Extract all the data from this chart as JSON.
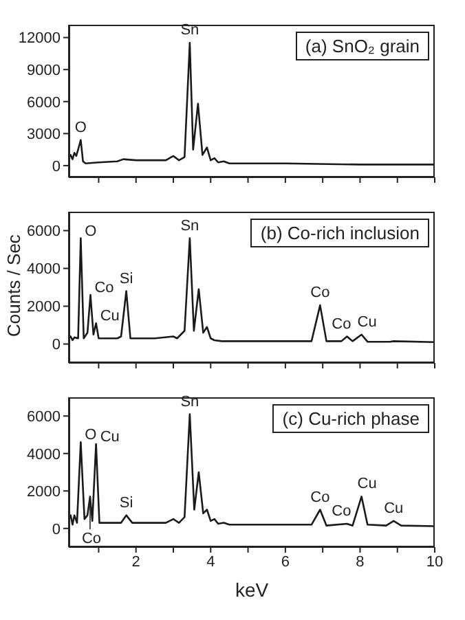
{
  "chart_data": [
    {
      "type": "line",
      "title": "(a) SnO₂ grain",
      "color": "#1a1a1a",
      "tick_labels": "y",
      "x": [
        0.2,
        0.25,
        0.3,
        0.35,
        0.4,
        0.45,
        0.52,
        0.58,
        0.65,
        1.0,
        1.5,
        1.66,
        2.0,
        2.8,
        3.0,
        3.15,
        3.3,
        3.44,
        3.53,
        3.66,
        3.78,
        3.9,
        4.0,
        4.1,
        4.2,
        4.35,
        4.5,
        6,
        8,
        10
      ],
      "values": [
        700,
        1000,
        600,
        1200,
        900,
        1500,
        2400,
        400,
        200,
        300,
        400,
        600,
        500,
        500,
        900,
        500,
        800,
        11500,
        1500,
        5800,
        1000,
        1700,
        500,
        700,
        300,
        400,
        200,
        200,
        100,
        100
      ],
      "xlim": [
        0.2,
        10
      ],
      "xticks": [
        {
          "value": 1,
          "label": null
        },
        2,
        {
          "value": 3,
          "label": null
        },
        4,
        {
          "value": 5,
          "label": null
        },
        6,
        {
          "value": 7,
          "label": null
        },
        8,
        {
          "value": 9,
          "label": null
        },
        10
      ],
      "ylim": [
        -1100,
        13200
      ],
      "yticks": [
        0,
        3000,
        6000,
        9000,
        12000
      ],
      "annotations": [
        {
          "text": "O",
          "x": 0.52,
          "y": 2400
        },
        {
          "text": "Sn",
          "x": 3.44,
          "y": 11500
        }
      ]
    },
    {
      "type": "line",
      "title": "(b) Co-rich inclusion",
      "ylabel": "Counts / Sec",
      "color": "#1a1a1a",
      "tick_labels": "y",
      "x": [
        0.2,
        0.25,
        0.3,
        0.35,
        0.45,
        0.52,
        0.6,
        0.7,
        0.78,
        0.86,
        0.93,
        1.0,
        1.5,
        1.6,
        1.74,
        1.85,
        2.5,
        3.0,
        3.1,
        3.3,
        3.44,
        3.55,
        3.68,
        3.8,
        3.9,
        4.0,
        4.1,
        4.3,
        6.7,
        6.93,
        7.1,
        7.5,
        7.65,
        7.8,
        8.04,
        8.2,
        8.8,
        8.9,
        10
      ],
      "values": [
        300,
        400,
        200,
        350,
        300,
        5600,
        300,
        600,
        2600,
        500,
        1100,
        300,
        300,
        400,
        2800,
        300,
        300,
        400,
        300,
        700,
        5600,
        700,
        2900,
        600,
        900,
        300,
        200,
        150,
        150,
        2050,
        150,
        150,
        400,
        150,
        500,
        120,
        120,
        150,
        100
      ],
      "xlim": [
        0.2,
        10
      ],
      "xticks": [
        {
          "value": 1,
          "label": null
        },
        2,
        {
          "value": 3,
          "label": null
        },
        4,
        {
          "value": 5,
          "label": null
        },
        6,
        {
          "value": 7,
          "label": null
        },
        8,
        {
          "value": 9,
          "label": null
        },
        10
      ],
      "ylim": [
        -1000,
        7000
      ],
      "yticks": [
        0,
        2000,
        4000,
        6000
      ],
      "annotations": [
        {
          "text": "O",
          "x": 0.52,
          "y": 5600
        },
        {
          "text": "Co",
          "x": 0.78,
          "y": 2600
        },
        {
          "text": "Cu",
          "x": 0.93,
          "y": 1100
        },
        {
          "text": "Si",
          "x": 1.74,
          "y": 2800
        },
        {
          "text": "Sn",
          "x": 3.44,
          "y": 5600
        },
        {
          "text": "Co",
          "x": 6.93,
          "y": 2050
        },
        {
          "text": "Co",
          "x": 7.65,
          "y": 400
        },
        {
          "text": "Cu",
          "x": 8.04,
          "y": 500
        }
      ]
    },
    {
      "type": "line",
      "title": "(c) Cu-rich phase",
      "xlabel": "keV",
      "color": "#1a1a1a",
      "x": [
        0.2,
        0.25,
        0.3,
        0.35,
        0.42,
        0.52,
        0.62,
        0.7,
        0.77,
        0.83,
        0.93,
        1.02,
        1.4,
        1.6,
        1.74,
        1.9,
        2.8,
        3.0,
        3.15,
        3.3,
        3.44,
        3.56,
        3.68,
        3.8,
        3.9,
        4.0,
        4.1,
        4.2,
        4.35,
        4.5,
        6.7,
        6.93,
        7.1,
        7.65,
        7.8,
        8.04,
        8.2,
        8.7,
        8.9,
        9.1,
        10
      ],
      "values": [
        500,
        700,
        200,
        700,
        300,
        4600,
        500,
        700,
        1700,
        400,
        4500,
        300,
        300,
        300,
        700,
        300,
        300,
        500,
        300,
        600,
        6100,
        1000,
        3000,
        800,
        1000,
        400,
        500,
        250,
        300,
        200,
        200,
        1000,
        150,
        250,
        150,
        1700,
        200,
        150,
        400,
        150,
        120
      ],
      "xlim": [
        0.2,
        10
      ],
      "xticks": [
        {
          "value": 1,
          "label": null
        },
        2,
        {
          "value": 3,
          "label": null
        },
        4,
        {
          "value": 5,
          "label": null
        },
        6,
        {
          "value": 7,
          "label": null
        },
        8,
        {
          "value": 9,
          "label": null
        },
        10
      ],
      "ylim": [
        -1000,
        7000
      ],
      "yticks": [
        0,
        2000,
        4000,
        6000
      ],
      "annotations": [
        {
          "text": "O",
          "x": 0.52,
          "y": 4600
        },
        {
          "text": "Co",
          "x": 0.77,
          "y": 1700
        },
        {
          "text": "Cu",
          "x": 0.93,
          "y": 4500
        },
        {
          "text": "Si",
          "x": 1.74,
          "y": 700
        },
        {
          "text": "Sn",
          "x": 3.44,
          "y": 6100
        },
        {
          "text": "Co",
          "x": 6.93,
          "y": 1000
        },
        {
          "text": "Co",
          "x": 7.65,
          "y": 250
        },
        {
          "text": "Cu",
          "x": 8.04,
          "y": 1700
        },
        {
          "text": "Cu",
          "x": 8.9,
          "y": 400
        }
      ]
    }
  ]
}
